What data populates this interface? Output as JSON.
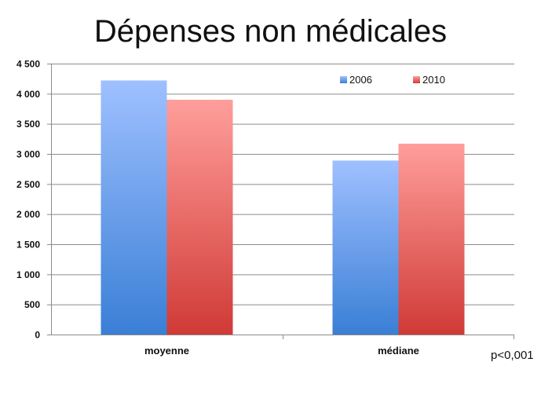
{
  "title": "Dépenses non médicales",
  "note": "p<0,001",
  "colors": {
    "s2006_top": "#9fc0ff",
    "s2006_bottom": "#3a7fd6",
    "s2010_top": "#ff9e9b",
    "s2010_bottom": "#d03a36",
    "grid": "#8c8c8c",
    "text": "#111111"
  },
  "chart_data": {
    "type": "bar",
    "title": "Dépenses non médicales",
    "categories": [
      "moyenne",
      "médiane"
    ],
    "series": [
      {
        "name": "2006",
        "values": [
          4220,
          2890
        ]
      },
      {
        "name": "2010",
        "values": [
          3900,
          3170
        ]
      }
    ],
    "ylim": [
      0,
      4500
    ],
    "yticks": [
      0,
      500,
      1000,
      1500,
      2000,
      2500,
      3000,
      3500,
      4000,
      4500
    ],
    "yticklabels": [
      "0",
      "500",
      "1 000",
      "1 500",
      "2 000",
      "2 500",
      "3 000",
      "3 500",
      "4 000",
      "4 500"
    ],
    "xlabel": "",
    "ylabel": "",
    "grid": true,
    "legend_position": "top-right"
  }
}
